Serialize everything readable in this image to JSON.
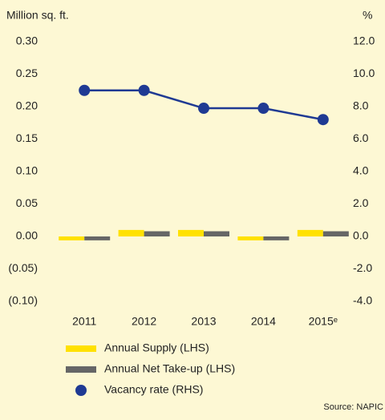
{
  "chart_data": {
    "type": "bar",
    "y_label": "Million sq. ft.",
    "y2_label": "%",
    "categories": [
      "2011",
      "2012",
      "2013",
      "2014",
      "2015ᵉ"
    ],
    "series": [
      {
        "name": "Annual Supply (LHS)",
        "color": "#ffe100",
        "values": [
          -0.006,
          0.01,
          0.01,
          -0.006,
          0.01
        ]
      },
      {
        "name": "Annual Net Take-up (LHS)",
        "color": "#666666",
        "values": [
          -0.006,
          0.008,
          0.008,
          -0.006,
          0.008
        ]
      },
      {
        "name": "Vacancy rate (RHS)",
        "color": "#1f3a93",
        "type": "line",
        "axis": "y2",
        "values": [
          9.0,
          9.0,
          7.9,
          7.9,
          7.2
        ]
      }
    ],
    "ylim": [
      -0.1,
      0.3
    ],
    "yticks": [
      {
        "value": -0.1,
        "label": "(0.10)"
      },
      {
        "value": -0.05,
        "label": "(0.05)"
      },
      {
        "value": 0,
        "label": "0.00"
      },
      {
        "value": 0.05,
        "label": "0.05"
      },
      {
        "value": 0.1,
        "label": "0.10"
      },
      {
        "value": 0.15,
        "label": "0.15"
      },
      {
        "value": 0.2,
        "label": "0.20"
      },
      {
        "value": 0.25,
        "label": "0.25"
      },
      {
        "value": 0.3,
        "label": "0.30"
      }
    ],
    "y2lim": [
      -4,
      12
    ],
    "y2ticks": [
      {
        "value": -4,
        "label": "-4.0"
      },
      {
        "value": -2,
        "label": "-2.0"
      },
      {
        "value": 0,
        "label": "0.0"
      },
      {
        "value": 2,
        "label": "2.0"
      },
      {
        "value": 4,
        "label": "4.0"
      },
      {
        "value": 6,
        "label": "6.0"
      },
      {
        "value": 8,
        "label": "8.0"
      },
      {
        "value": 10,
        "label": "10.0"
      },
      {
        "value": 12,
        "label": "12.0"
      }
    ],
    "source": "Source: NAPIC",
    "grid": false
  }
}
